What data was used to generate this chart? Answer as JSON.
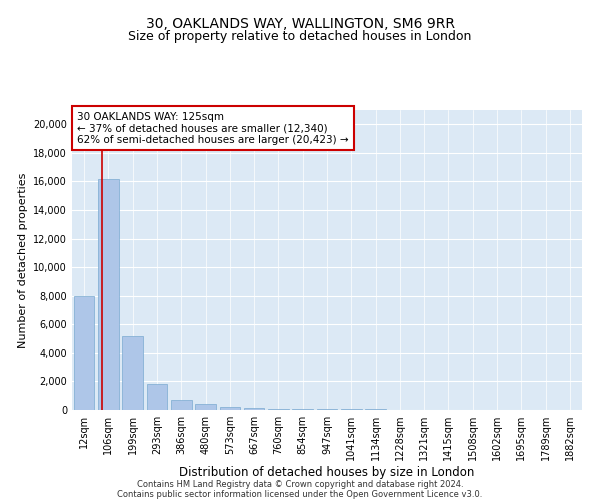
{
  "title1": "30, OAKLANDS WAY, WALLINGTON, SM6 9RR",
  "title2": "Size of property relative to detached houses in London",
  "xlabel": "Distribution of detached houses by size in London",
  "ylabel": "Number of detached properties",
  "categories": [
    "12sqm",
    "106sqm",
    "199sqm",
    "293sqm",
    "386sqm",
    "480sqm",
    "573sqm",
    "667sqm",
    "760sqm",
    "854sqm",
    "947sqm",
    "1041sqm",
    "1134sqm",
    "1228sqm",
    "1321sqm",
    "1415sqm",
    "1508sqm",
    "1602sqm",
    "1695sqm",
    "1789sqm",
    "1882sqm"
  ],
  "bar_values": [
    8000,
    16200,
    5200,
    1800,
    700,
    400,
    200,
    150,
    100,
    80,
    50,
    50,
    40,
    30,
    25,
    20,
    15,
    10,
    8,
    5,
    3
  ],
  "bar_color": "#aec6e8",
  "bar_edge_color": "#7aaad0",
  "vline_x_index": 1,
  "vline_color": "#cc0000",
  "annotation_text": "30 OAKLANDS WAY: 125sqm\n← 37% of detached houses are smaller (12,340)\n62% of semi-detached houses are larger (20,423) →",
  "annotation_box_color": "#ffffff",
  "annotation_box_edge": "#cc0000",
  "ylim": [
    0,
    21000
  ],
  "yticks": [
    0,
    2000,
    4000,
    6000,
    8000,
    10000,
    12000,
    14000,
    16000,
    18000,
    20000
  ],
  "background_color": "#dce9f5",
  "footer1": "Contains HM Land Registry data © Crown copyright and database right 2024.",
  "footer2": "Contains public sector information licensed under the Open Government Licence v3.0.",
  "title1_fontsize": 10,
  "title2_fontsize": 9,
  "xlabel_fontsize": 8.5,
  "ylabel_fontsize": 8,
  "tick_fontsize": 7,
  "annotation_fontsize": 7.5,
  "footer_fontsize": 6
}
